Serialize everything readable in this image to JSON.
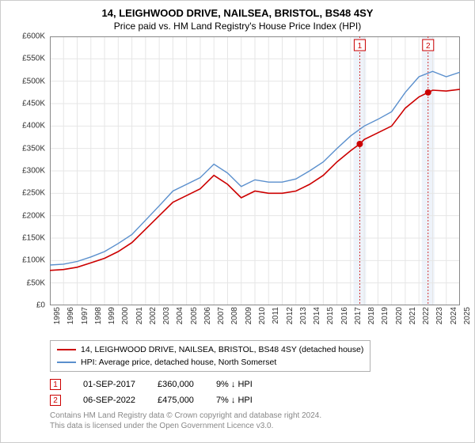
{
  "title": "14, LEIGHWOOD DRIVE, NAILSEA, BRISTOL, BS48 4SY",
  "subtitle": "Price paid vs. HM Land Registry's House Price Index (HPI)",
  "chart": {
    "type": "line",
    "background_color": "#ffffff",
    "grid_color": "#e6e6e6",
    "ylim": [
      0,
      600000
    ],
    "ytick_step": 50000,
    "y_tick_labels": [
      "£0",
      "£50K",
      "£100K",
      "£150K",
      "£200K",
      "£250K",
      "£300K",
      "£350K",
      "£400K",
      "£450K",
      "£500K",
      "£550K",
      "£600K"
    ],
    "x_years": [
      1995,
      1996,
      1997,
      1998,
      1999,
      2000,
      2001,
      2002,
      2003,
      2004,
      2005,
      2006,
      2007,
      2008,
      2009,
      2010,
      2011,
      2012,
      2013,
      2014,
      2015,
      2016,
      2017,
      2018,
      2019,
      2020,
      2021,
      2022,
      2023,
      2024,
      2025
    ],
    "label_fontsize": 10,
    "series": [
      {
        "name": "property",
        "label": "14, LEIGHWOOD DRIVE, NAILSEA, BRISTOL, BS48 4SY (detached house)",
        "color": "#cc0000",
        "width": 1.6,
        "data": [
          [
            1995,
            78000
          ],
          [
            1996,
            80000
          ],
          [
            1997,
            85000
          ],
          [
            1998,
            95000
          ],
          [
            1999,
            105000
          ],
          [
            2000,
            120000
          ],
          [
            2001,
            140000
          ],
          [
            2002,
            170000
          ],
          [
            2003,
            200000
          ],
          [
            2004,
            230000
          ],
          [
            2005,
            245000
          ],
          [
            2006,
            260000
          ],
          [
            2007,
            290000
          ],
          [
            2008,
            270000
          ],
          [
            2009,
            240000
          ],
          [
            2010,
            255000
          ],
          [
            2011,
            250000
          ],
          [
            2012,
            250000
          ],
          [
            2013,
            255000
          ],
          [
            2014,
            270000
          ],
          [
            2015,
            290000
          ],
          [
            2016,
            320000
          ],
          [
            2017,
            345000
          ],
          [
            2017.67,
            360000
          ],
          [
            2018,
            370000
          ],
          [
            2019,
            385000
          ],
          [
            2020,
            400000
          ],
          [
            2021,
            440000
          ],
          [
            2022,
            465000
          ],
          [
            2022.67,
            475000
          ],
          [
            2023,
            480000
          ],
          [
            2024,
            478000
          ],
          [
            2025,
            482000
          ]
        ],
        "markers": [
          {
            "x": 2017.67,
            "y": 360000,
            "label": "1"
          },
          {
            "x": 2022.67,
            "y": 475000,
            "label": "2"
          }
        ]
      },
      {
        "name": "hpi",
        "label": "HPI: Average price, detached house, North Somerset",
        "color": "#5a8fcd",
        "width": 1.4,
        "data": [
          [
            1995,
            90000
          ],
          [
            1996,
            92000
          ],
          [
            1997,
            98000
          ],
          [
            1998,
            108000
          ],
          [
            1999,
            120000
          ],
          [
            2000,
            138000
          ],
          [
            2001,
            158000
          ],
          [
            2002,
            190000
          ],
          [
            2003,
            222000
          ],
          [
            2004,
            255000
          ],
          [
            2005,
            270000
          ],
          [
            2006,
            285000
          ],
          [
            2007,
            315000
          ],
          [
            2008,
            295000
          ],
          [
            2009,
            265000
          ],
          [
            2010,
            280000
          ],
          [
            2011,
            275000
          ],
          [
            2012,
            275000
          ],
          [
            2013,
            282000
          ],
          [
            2014,
            300000
          ],
          [
            2015,
            320000
          ],
          [
            2016,
            350000
          ],
          [
            2017,
            378000
          ],
          [
            2018,
            400000
          ],
          [
            2019,
            415000
          ],
          [
            2020,
            432000
          ],
          [
            2021,
            475000
          ],
          [
            2022,
            510000
          ],
          [
            2023,
            522000
          ],
          [
            2024,
            510000
          ],
          [
            2025,
            520000
          ]
        ]
      }
    ],
    "marker_bands": [
      {
        "x": 2017.67,
        "color": "#eef3fa"
      },
      {
        "x": 2022.67,
        "color": "#eef3fa"
      }
    ],
    "marker_dot_color": "#cc0000",
    "marker_line_color": "#cc0000",
    "marker_box_border": "#cc0000"
  },
  "legend": {
    "rows": [
      {
        "color": "#cc0000",
        "label": "14, LEIGHWOOD DRIVE, NAILSEA, BRISTOL, BS48 4SY (detached house)"
      },
      {
        "color": "#5a8fcd",
        "label": "HPI: Average price, detached house, North Somerset"
      }
    ]
  },
  "transactions": [
    {
      "num": "1",
      "date": "01-SEP-2017",
      "price": "£360,000",
      "delta": "9% ↓ HPI"
    },
    {
      "num": "2",
      "date": "06-SEP-2022",
      "price": "£475,000",
      "delta": "7% ↓ HPI"
    }
  ],
  "footnote_line1": "Contains HM Land Registry data © Crown copyright and database right 2024.",
  "footnote_line2": "This data is licensed under the Open Government Licence v3.0."
}
